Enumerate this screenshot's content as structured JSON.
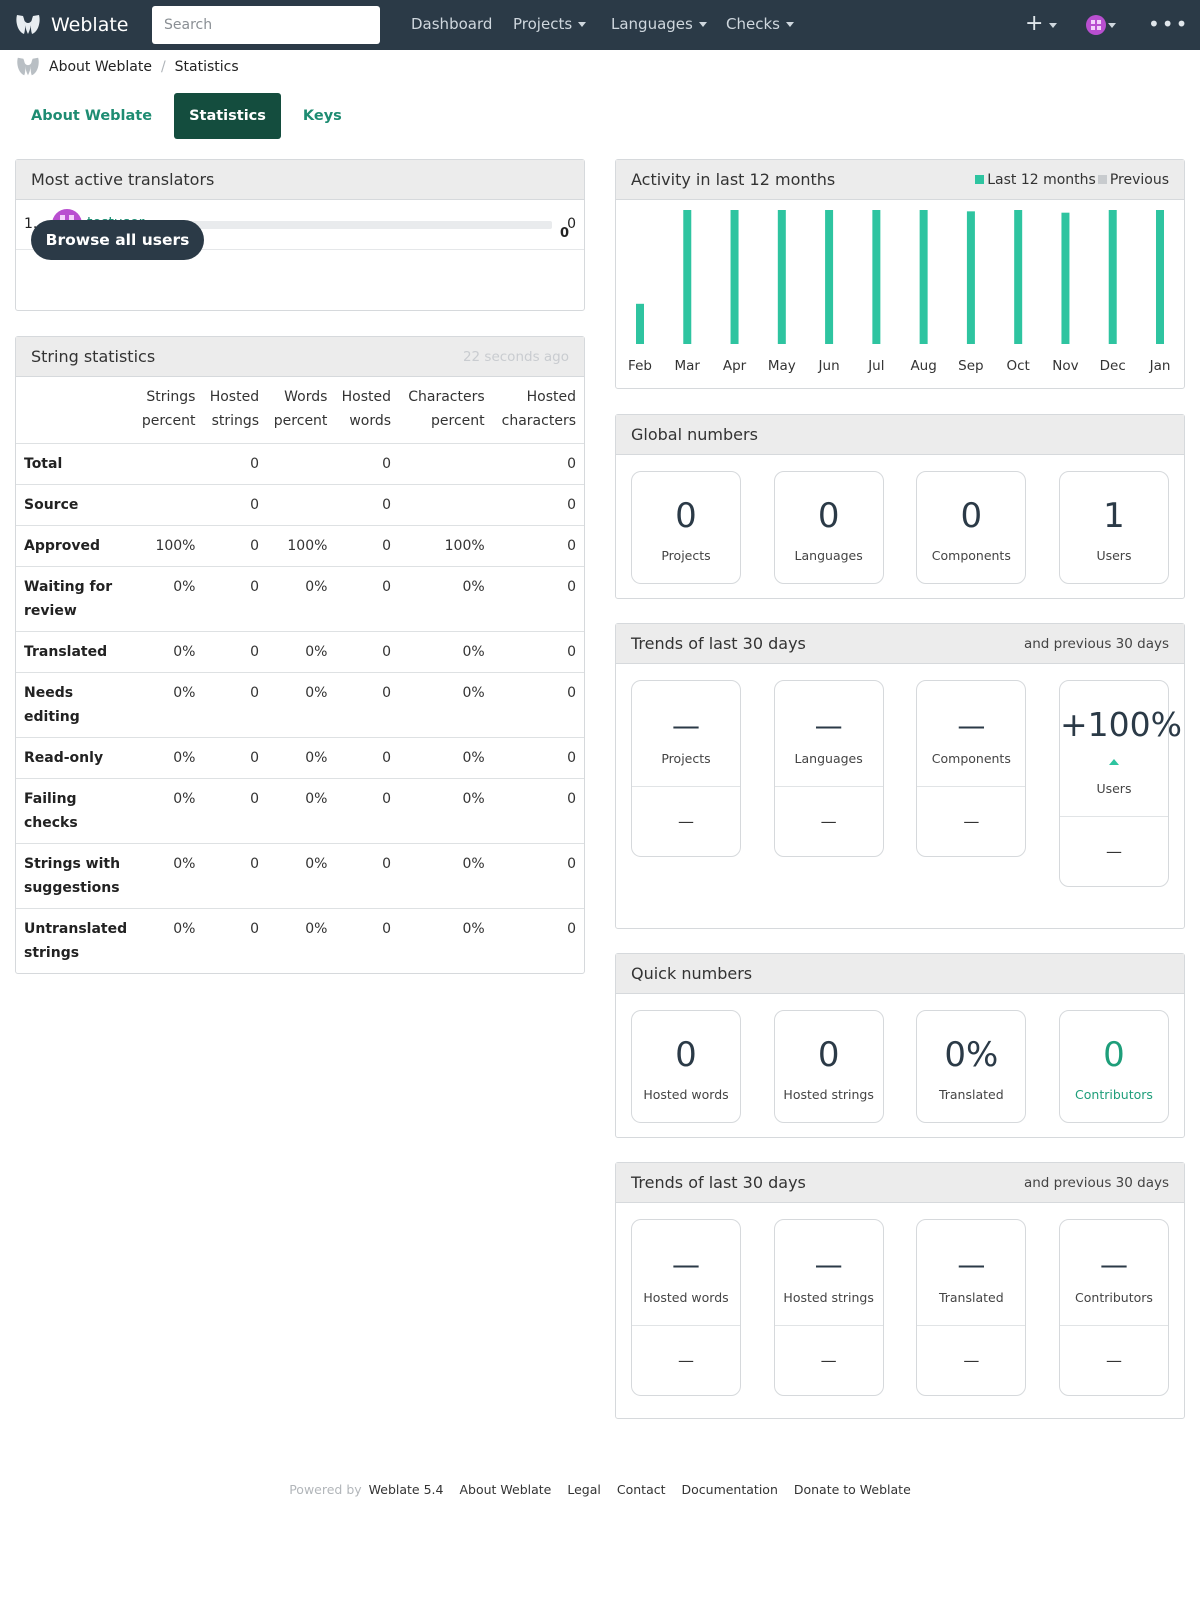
{
  "nav": {
    "brand": "Weblate",
    "search_placeholder": "Search",
    "links": [
      "Dashboard",
      "Projects",
      "Languages",
      "Checks"
    ],
    "plus": "+",
    "more": "•••"
  },
  "breadcrumb": [
    "About Weblate",
    "Statistics"
  ],
  "tabs": [
    {
      "label": "About Weblate",
      "active": false
    },
    {
      "label": "Statistics",
      "active": true
    },
    {
      "label": "Keys",
      "active": false
    }
  ],
  "most_active": {
    "title": "Most active translators",
    "rank": "1.",
    "user": "testuser",
    "count": "0",
    "browse_label": "Browse all users",
    "browse_count": "0"
  },
  "string_stats": {
    "title": "String statistics",
    "updated": "22 seconds ago",
    "columns": [
      [
        "Strings",
        "percent"
      ],
      [
        "Hosted",
        "strings"
      ],
      [
        "Words",
        "percent"
      ],
      [
        "Hosted",
        "words"
      ],
      [
        "Characters",
        "percent"
      ],
      [
        "Hosted",
        "characters"
      ]
    ],
    "rows": [
      {
        "label": [
          "Total"
        ],
        "values": [
          "",
          "0",
          "",
          "0",
          "",
          "0"
        ]
      },
      {
        "label": [
          "Source"
        ],
        "values": [
          "",
          "0",
          "",
          "0",
          "",
          "0"
        ]
      },
      {
        "label": [
          "Approved"
        ],
        "values": [
          "100%",
          "0",
          "100%",
          "0",
          "100%",
          "0"
        ]
      },
      {
        "label": [
          "Waiting for",
          "review"
        ],
        "values": [
          "0%",
          "0",
          "0%",
          "0",
          "0%",
          "0"
        ]
      },
      {
        "label": [
          "Translated"
        ],
        "values": [
          "0%",
          "0",
          "0%",
          "0",
          "0%",
          "0"
        ]
      },
      {
        "label": [
          "Needs editing"
        ],
        "values": [
          "0%",
          "0",
          "0%",
          "0",
          "0%",
          "0"
        ]
      },
      {
        "label": [
          "Read-only"
        ],
        "values": [
          "0%",
          "0",
          "0%",
          "0",
          "0%",
          "0"
        ]
      },
      {
        "label": [
          "Failing",
          "checks"
        ],
        "values": [
          "0%",
          "0",
          "0%",
          "0",
          "0%",
          "0"
        ]
      },
      {
        "label": [
          "Strings with",
          "suggestions"
        ],
        "values": [
          "0%",
          "0",
          "0%",
          "0",
          "0%",
          "0"
        ]
      },
      {
        "label": [
          "Untranslated",
          "strings"
        ],
        "values": [
          "0%",
          "0",
          "0%",
          "0",
          "0%",
          "0"
        ]
      }
    ]
  },
  "activity": {
    "title": "Activity in last 12 months",
    "legend_current": "Last 12 months",
    "legend_previous": "Previous",
    "color_current": "#2ec4a0",
    "color_previous": "#c8cbce"
  },
  "chart_data": {
    "type": "bar",
    "categories": [
      "Feb",
      "Mar",
      "Apr",
      "May",
      "Jun",
      "Jul",
      "Aug",
      "Sep",
      "Oct",
      "Nov",
      "Dec",
      "Jan"
    ],
    "series": [
      {
        "name": "Last 12 months",
        "values": [
          0.3,
          1,
          1,
          1,
          1,
          1,
          1,
          0.99,
          1,
          0.98,
          1,
          1
        ]
      },
      {
        "name": "Previous",
        "values": [
          0,
          0,
          0,
          0,
          0,
          0,
          0,
          0,
          0,
          0,
          0,
          0
        ]
      }
    ],
    "ylim": [
      0,
      1
    ]
  },
  "global_numbers": {
    "title": "Global numbers",
    "items": [
      {
        "value": "0",
        "label": "Projects"
      },
      {
        "value": "0",
        "label": "Languages"
      },
      {
        "value": "0",
        "label": "Components"
      },
      {
        "value": "1",
        "label": "Users"
      }
    ]
  },
  "trends_1": {
    "title": "Trends of last 30 days",
    "aside": "and previous 30 days",
    "items": [
      {
        "value": "—",
        "label": "Projects",
        "sub": "—"
      },
      {
        "value": "—",
        "label": "Languages",
        "sub": "—"
      },
      {
        "value": "—",
        "label": "Components",
        "sub": "—"
      },
      {
        "value": "+100%",
        "label": "Users",
        "sub": "—"
      }
    ]
  },
  "quick_numbers": {
    "title": "Quick numbers",
    "items": [
      {
        "value": "0",
        "label": "Hosted words"
      },
      {
        "value": "0",
        "label": "Hosted strings"
      },
      {
        "value": "0%",
        "label": "Translated"
      },
      {
        "value": "0",
        "label": "Contributors"
      }
    ]
  },
  "trends_2": {
    "title": "Trends of last 30 days",
    "aside": "and previous 30 days",
    "items": [
      {
        "value": "—",
        "label": "Hosted words",
        "sub": "—"
      },
      {
        "value": "—",
        "label": "Hosted strings",
        "sub": "—"
      },
      {
        "value": "—",
        "label": "Translated",
        "sub": "—"
      },
      {
        "value": "—",
        "label": "Contributors",
        "sub": "—"
      }
    ]
  },
  "footer": {
    "powered": "Powered by",
    "links": [
      "Weblate 5.4",
      "About Weblate",
      "Legal",
      "Contact",
      "Documentation",
      "Donate to Weblate"
    ]
  }
}
